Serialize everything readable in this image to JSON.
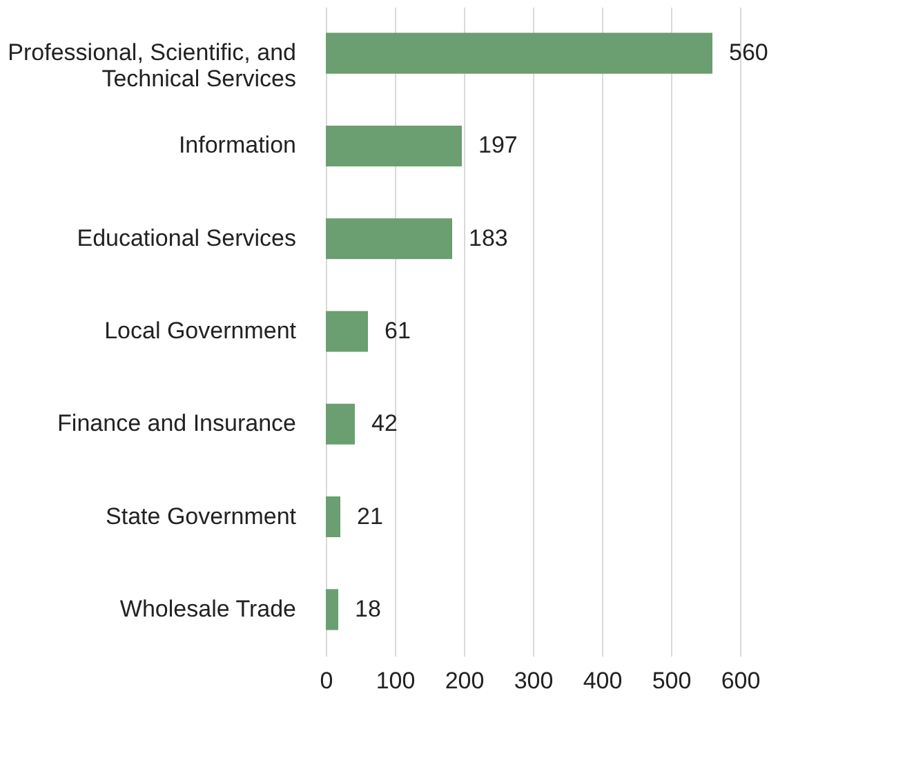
{
  "chart_data": {
    "type": "bar",
    "orientation": "horizontal",
    "categories": [
      "Professional, Scientific, and Technical Services",
      "Information",
      "Educational Services",
      "Local Government",
      "Finance and Insurance",
      "State Government",
      "Wholesale Trade"
    ],
    "values": [
      560,
      197,
      183,
      61,
      42,
      21,
      18
    ],
    "color": "#6b9e71",
    "xlim": [
      0,
      600
    ],
    "xticks": [
      0,
      100,
      200,
      300,
      400,
      500,
      600
    ],
    "grid": "x",
    "data_labels": true
  }
}
